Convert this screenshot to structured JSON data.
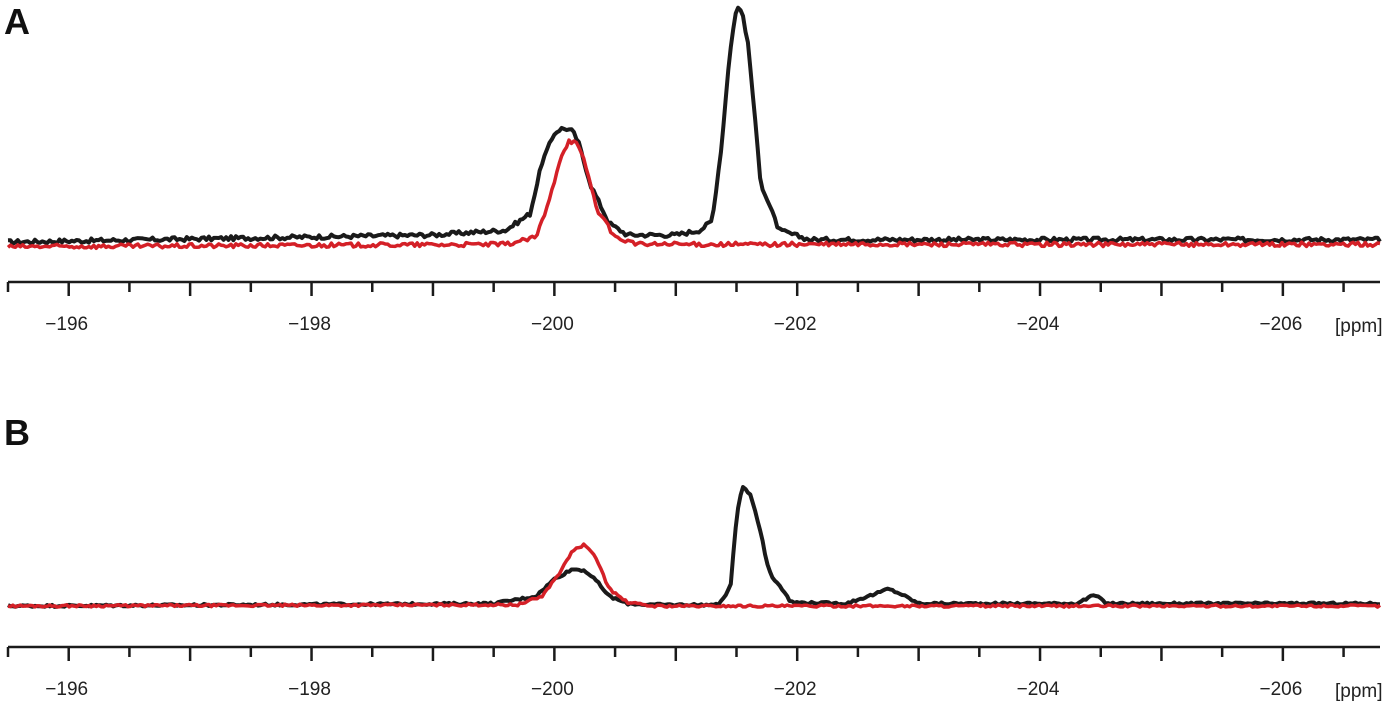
{
  "chart_data": [
    {
      "panel": "A",
      "type": "line",
      "xunit": "[ppm]",
      "xlim": [
        -195.5,
        -206.8
      ],
      "xticks_major": [
        -196,
        -198,
        -200,
        -202,
        -204,
        -206
      ],
      "xticks_major_labels": [
        "−196",
        "−198",
        "−200",
        "−202",
        "−204",
        "−206"
      ],
      "grid": false,
      "series": [
        {
          "color": "#1a1a1a",
          "baseline": 0.0,
          "x": [
            -195.5,
            -199.0,
            -199.6,
            -199.8,
            -199.9,
            -200.0,
            -200.05,
            -200.1,
            -200.15,
            -200.2,
            -200.3,
            -200.45,
            -200.6,
            -201.0,
            -201.2,
            -201.3,
            -201.38,
            -201.44,
            -201.5,
            -201.55,
            -201.6,
            -201.7,
            -201.85,
            -202.1,
            -206.8
          ],
          "y": [
            0.0,
            0.03,
            0.05,
            0.12,
            0.34,
            0.46,
            0.48,
            0.48,
            0.47,
            0.42,
            0.24,
            0.08,
            0.03,
            0.03,
            0.05,
            0.09,
            0.42,
            0.78,
            1.0,
            0.97,
            0.82,
            0.25,
            0.05,
            0.01,
            0.01
          ]
        },
        {
          "color": "#d42027",
          "baseline": -0.02,
          "x": [
            -195.5,
            -199.6,
            -199.85,
            -199.95,
            -200.05,
            -200.12,
            -200.18,
            -200.25,
            -200.35,
            -200.5,
            -200.7,
            -206.8
          ],
          "y": [
            0.0,
            0.01,
            0.04,
            0.18,
            0.38,
            0.45,
            0.44,
            0.36,
            0.16,
            0.04,
            0.01,
            0.01
          ]
        }
      ]
    },
    {
      "panel": "B",
      "type": "line",
      "xunit": "[ppm]",
      "xlim": [
        -195.5,
        -206.8
      ],
      "xticks_major": [
        -196,
        -198,
        -200,
        -202,
        -204,
        -206
      ],
      "xticks_major_labels": [
        "−196",
        "−198",
        "−200",
        "−202",
        "−204",
        "−206"
      ],
      "grid": false,
      "series": [
        {
          "color": "#1a1a1a",
          "baseline": 0.0,
          "x": [
            -195.5,
            -199.5,
            -199.85,
            -200.0,
            -200.15,
            -200.25,
            -200.35,
            -200.45,
            -200.6,
            -200.8,
            -201.35,
            -201.45,
            -201.5,
            -201.55,
            -201.62,
            -201.7,
            -201.75,
            -201.8,
            -201.85,
            -201.95,
            -202.4,
            -202.65,
            -202.75,
            -202.85,
            -203.0,
            -204.3,
            -204.45,
            -204.55,
            -206.8
          ],
          "y": [
            0.0,
            0.02,
            0.08,
            0.22,
            0.3,
            0.29,
            0.2,
            0.08,
            0.02,
            0.01,
            0.01,
            0.15,
            0.72,
            0.98,
            0.9,
            0.6,
            0.35,
            0.22,
            0.18,
            0.03,
            0.02,
            0.1,
            0.14,
            0.1,
            0.02,
            0.02,
            0.09,
            0.02,
            0.02
          ]
        },
        {
          "color": "#d42027",
          "baseline": 0.0,
          "x": [
            -195.5,
            -199.7,
            -199.9,
            -200.05,
            -200.15,
            -200.25,
            -200.35,
            -200.45,
            -200.6,
            -200.8,
            -206.8
          ],
          "y": [
            0.0,
            0.01,
            0.08,
            0.28,
            0.45,
            0.5,
            0.38,
            0.14,
            0.03,
            0.0,
            0.0
          ]
        }
      ]
    }
  ]
}
